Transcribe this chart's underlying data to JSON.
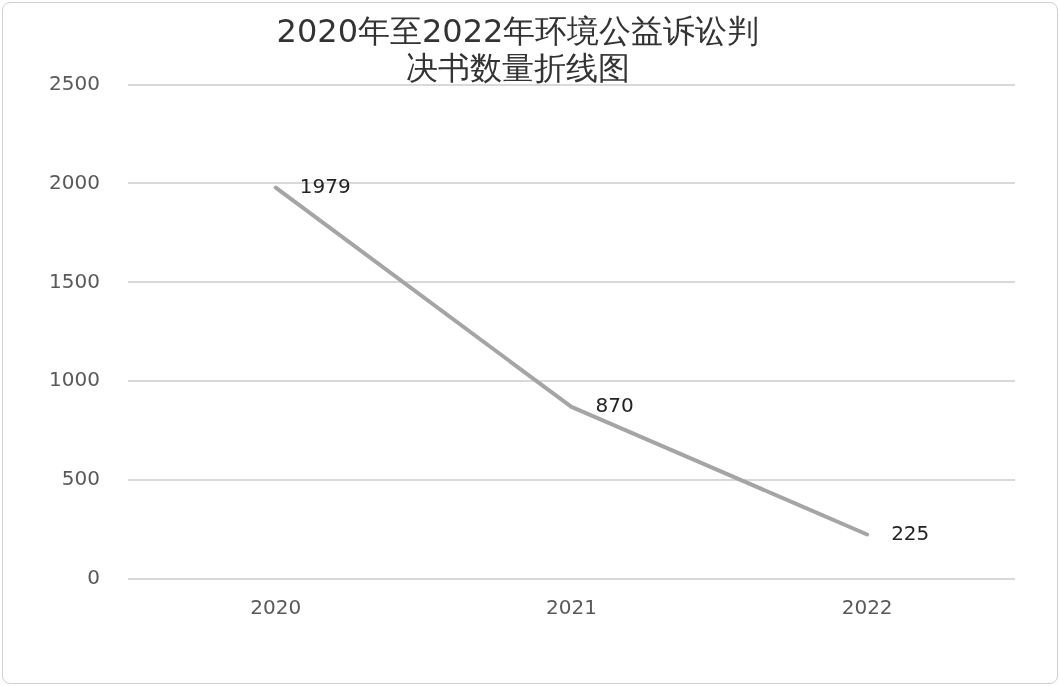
{
  "chart_data": {
    "type": "line",
    "title": "2020年至2022年环境公益诉讼判决书数量折线图",
    "categories": [
      "2020",
      "2021",
      "2022"
    ],
    "series": [
      {
        "color": "#a5a5a5",
        "values": [
          1979,
          870,
          225
        ]
      }
    ],
    "ylim": [
      0,
      2500
    ],
    "yticks": [
      0,
      500,
      1000,
      1500,
      2000,
      2500
    ],
    "grid": "y",
    "legend": false,
    "marker": "none",
    "line_style": "solid",
    "data_labels": true
  }
}
